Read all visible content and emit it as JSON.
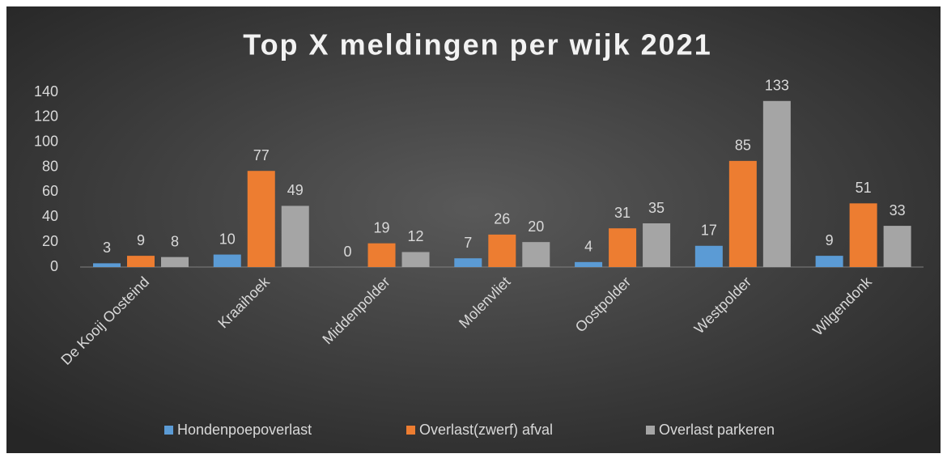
{
  "chart_data": {
    "type": "bar",
    "title": "Top X meldingen per wijk 2021",
    "categories": [
      "De Kooij Oosteind",
      "Kraaihoek",
      "Middenpolder",
      "Molenvliet",
      "Oostpolder",
      "Westpolder",
      "Wilgendonk"
    ],
    "series": [
      {
        "name": "Hondenpoepoverlast",
        "color": "#5b9bd5",
        "values": [
          3,
          10,
          0,
          7,
          4,
          17,
          9
        ]
      },
      {
        "name": "Overlast(zwerf) afval",
        "color": "#ed7d31",
        "values": [
          9,
          77,
          19,
          26,
          31,
          85,
          51
        ]
      },
      {
        "name": "Overlast parkeren",
        "color": "#a5a5a5",
        "values": [
          8,
          49,
          12,
          20,
          35,
          133,
          33
        ]
      }
    ],
    "ylim": [
      0,
      140
    ],
    "yticks": [
      0,
      20,
      40,
      60,
      80,
      100,
      120,
      140
    ],
    "grid": false,
    "legend": "bottom"
  }
}
